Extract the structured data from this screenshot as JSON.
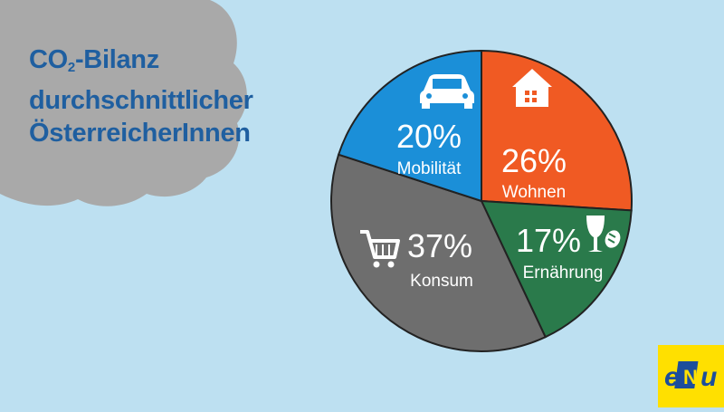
{
  "title": {
    "line1_main": "CO",
    "line1_sub": "2",
    "line1_rest": "-Bilanz",
    "line2": "durchschnittlicher",
    "line3": "ÖsterreicherInnen"
  },
  "chart_data": {
    "type": "pie",
    "title": "CO2-Bilanz durchschnittlicher ÖsterreicherInnen",
    "slices": [
      {
        "label": "Wohnen",
        "value": 26,
        "value_label": "26%",
        "color": "#f05a23",
        "icon": "house-icon"
      },
      {
        "label": "Ernährung",
        "value": 17,
        "value_label": "17%",
        "color": "#2a7a4b",
        "icon": "glass-bread-icon"
      },
      {
        "label": "Konsum",
        "value": 37,
        "value_label": "37%",
        "color": "#6e6e6e",
        "icon": "shopping-cart-icon"
      },
      {
        "label": "Mobilität",
        "value": 20,
        "value_label": "20%",
        "color": "#1b8fd8",
        "icon": "car-icon"
      }
    ],
    "legend": "none"
  },
  "colors": {
    "background": "#bde0f1",
    "cloud": "#a9a9a9",
    "title": "#1f5fa0",
    "logo_bg": "#ffe000",
    "logo_blue": "#1c4e9c"
  },
  "logo": {
    "text_e": "e",
    "text_n": "N",
    "text_u": "u"
  }
}
